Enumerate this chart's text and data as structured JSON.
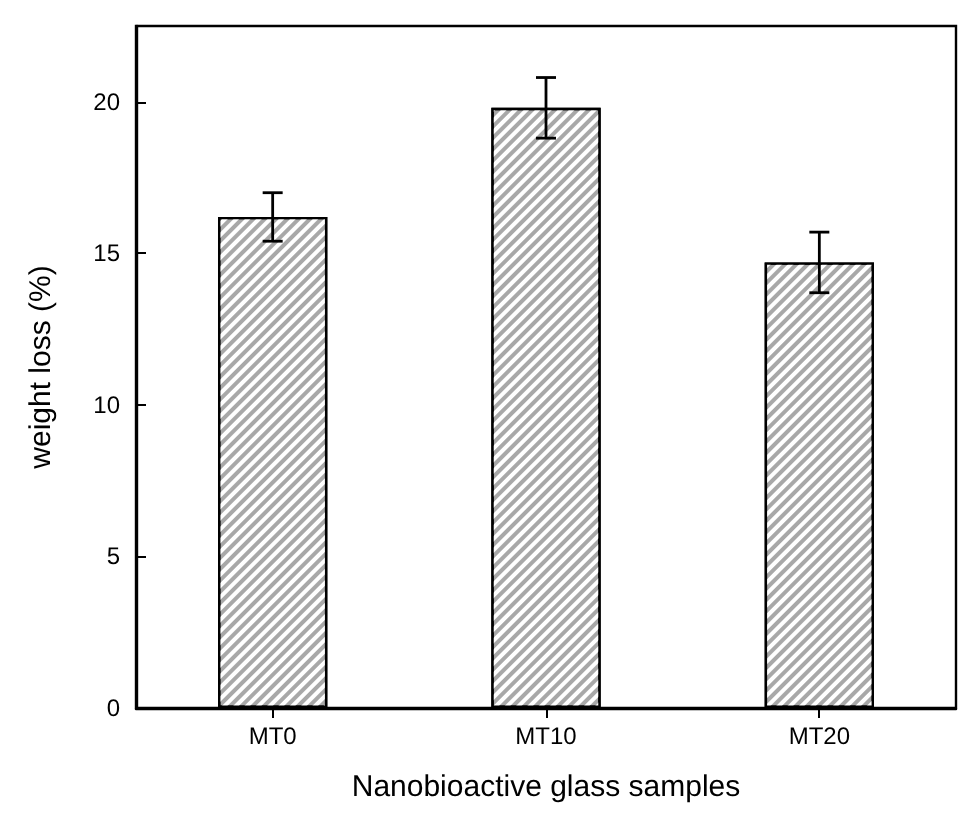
{
  "chart_data": {
    "type": "bar",
    "xlabel": "Nanobioactive glass samples",
    "ylabel": "weight loss (%)",
    "categories": [
      "MT0",
      "MT10",
      "MT20"
    ],
    "values": [
      16.2,
      19.8,
      14.7
    ],
    "errors": [
      0.8,
      1.0,
      1.0
    ],
    "color": "#a8a8a8",
    "ylim": [
      0,
      22.5
    ],
    "yticks": [
      0,
      5,
      10,
      15,
      20
    ],
    "grid": false
  }
}
